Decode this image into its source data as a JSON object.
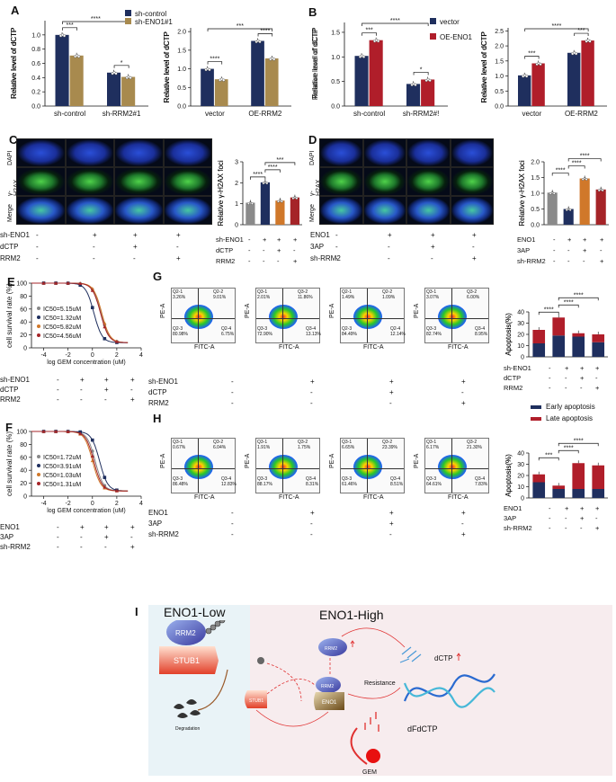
{
  "panels": {
    "A": "A",
    "B": "B",
    "C": "C",
    "D": "D",
    "E": "E",
    "F": "F",
    "G": "G",
    "H": "H",
    "I": "I"
  },
  "panelA": {
    "legend": [
      "sh-control",
      "sh-ENO1#1"
    ],
    "ylabel": "Relative level of dCTP",
    "chart1": {
      "categories": [
        "sh-control",
        "sh-RRM2#1"
      ],
      "sig": [
        "****",
        "***",
        "*"
      ]
    },
    "chart2": {
      "categories": [
        "vector",
        "OE-RRM2"
      ],
      "sig": [
        "***",
        "****",
        "****"
      ]
    }
  },
  "panelB": {
    "legend": [
      "vector",
      "OE-ENO1"
    ],
    "ylabel": "Relative level of dCTP",
    "chart1": {
      "categories": [
        "sh-control",
        "sh-RRM2#!"
      ],
      "sig": [
        "****",
        "***",
        "*"
      ]
    },
    "chart2": {
      "categories": [
        "vector",
        "OE-RRM2"
      ],
      "sig": [
        "****",
        "***",
        "***"
      ]
    }
  },
  "panelC": {
    "rows": [
      "DAPI",
      "γ-H2AX",
      "Merge"
    ],
    "ylabel": "Relative γ-H2AX foci",
    "sig": [
      "****",
      "****",
      "***"
    ],
    "conds": [
      {
        "name": "sh-ENO1",
        "vals": [
          "-",
          "+",
          "+",
          "+"
        ]
      },
      {
        "name": "dCTP",
        "vals": [
          "-",
          "-",
          "+",
          "-"
        ]
      },
      {
        "name": "RRM2",
        "vals": [
          "-",
          "-",
          "-",
          "+"
        ]
      }
    ]
  },
  "panelD": {
    "rows": [
      "DAPI",
      "γ-H2AX",
      "Merge"
    ],
    "ylabel": "Relative γ-H2AX foci",
    "sig": [
      "****",
      "****",
      "****"
    ],
    "conds": [
      {
        "name": "ENO1",
        "vals": [
          "-",
          "+",
          "+",
          "+"
        ]
      },
      {
        "name": "3AP",
        "vals": [
          "-",
          "-",
          "+",
          "-"
        ]
      },
      {
        "name": "sh-RRM2",
        "vals": [
          "-",
          "-",
          "-",
          "+"
        ]
      }
    ]
  },
  "panelE": {
    "ylabel": "cell survival rate (%)",
    "xlabel": "log GEM concentration (uM)",
    "ic50": [
      "IC50=5.15uM",
      "IC50=1.32uM",
      "IC50=5.82uM",
      "IC50=4.56uM"
    ],
    "conds": [
      {
        "name": "sh-ENO1",
        "vals": [
          "-",
          "+",
          "+",
          "+"
        ]
      },
      {
        "name": "dCTP",
        "vals": [
          "-",
          "-",
          "+",
          "-"
        ]
      },
      {
        "name": "RRM2",
        "vals": [
          "-",
          "-",
          "-",
          "+"
        ]
      }
    ]
  },
  "panelF": {
    "ylabel": "cell survival rate (%)",
    "xlabel": "log GEM concentration (uM)",
    "ic50": [
      "IC50=1.72uM",
      "IC50=3.91uM",
      "IC50=1.03uM",
      "IC50=1.31uM"
    ],
    "conds": [
      {
        "name": "ENO1",
        "vals": [
          "-",
          "+",
          "+",
          "+"
        ]
      },
      {
        "name": "3AP",
        "vals": [
          "-",
          "-",
          "+",
          "-"
        ]
      },
      {
        "name": "sh-RRM2",
        "vals": [
          "-",
          "-",
          "-",
          "+"
        ]
      }
    ]
  },
  "panelG": {
    "facs": [
      {
        "q1": "Q2-1",
        "q1v": "3.26%",
        "q2": "Q2-2",
        "q2v": "9.01%",
        "q3": "Q2-3",
        "q3v": "80.98%",
        "q4": "Q2-4",
        "q4v": "6.75%"
      },
      {
        "q1": "Q3-1",
        "q1v": "2.01%",
        "q2": "Q3-2",
        "q2v": "11.86%",
        "q3": "Q3-3",
        "q3v": "72.90%",
        "q4": "Q3-4",
        "q4v": "13.13%"
      },
      {
        "q1": "Q2-1",
        "q1v": "1.49%",
        "q2": "Q2-2",
        "q2v": "1.09%",
        "q3": "Q2-3",
        "q3v": "84.49%",
        "q4": "Q2-4",
        "q4v": "12.14%"
      },
      {
        "q1": "Q3-1",
        "q1v": "3.07%",
        "q2": "Q3-2",
        "q2v": "6.00%",
        "q3": "Q3-3",
        "q3v": "82.74%",
        "q4": "Q3-4",
        "q4v": "8.95%"
      }
    ],
    "ylabel": "Apoptosis(%)",
    "sig": [
      "****",
      "****",
      "****"
    ],
    "conds": [
      {
        "name": "sh-ENO1",
        "vals": [
          "-",
          "+",
          "+",
          "+"
        ]
      },
      {
        "name": "dCTP",
        "vals": [
          "-",
          "-",
          "+",
          "-"
        ]
      },
      {
        "name": "RRM2",
        "vals": [
          "-",
          "-",
          "-",
          "+"
        ]
      }
    ],
    "legend": [
      "Early apoptosis",
      "Late apoptosis"
    ]
  },
  "panelH": {
    "facs": [
      {
        "q1": "Q3-1",
        "q1v": "0.67%",
        "q2": "Q3-2",
        "q2v": "6.04%",
        "q3": "Q3-3",
        "q3v": "86.48%",
        "q4": "Q3-4",
        "q4v": "12.83%"
      },
      {
        "q1": "Q3-1",
        "q1v": "1.91%",
        "q2": "Q3-2",
        "q2v": "1.75%",
        "q3": "Q3-3",
        "q3v": "88.17%",
        "q4": "Q3-4",
        "q4v": "8.31%"
      },
      {
        "q1": "Q3-1",
        "q1v": "6.65%",
        "q2": "Q3-2",
        "q2v": "23.39%",
        "q3": "Q3-3",
        "q3v": "61.46%",
        "q4": "Q3-4",
        "q4v": "8.51%"
      },
      {
        "q1": "Q3-1",
        "q1v": "6.17%",
        "q2": "Q3-2",
        "q2v": "21.30%",
        "q3": "Q3-3",
        "q3v": "64.61%",
        "q4": "Q3-4",
        "q4v": "7.83%"
      }
    ],
    "ylabel": "Apoptosis(%)",
    "sig": [
      "***",
      "****",
      "****"
    ],
    "conds": [
      {
        "name": "ENO1",
        "vals": [
          "-",
          "+",
          "+",
          "+"
        ]
      },
      {
        "name": "3AP",
        "vals": [
          "-",
          "-",
          "+",
          "-"
        ]
      },
      {
        "name": "sh-RRM2",
        "vals": [
          "-",
          "-",
          "-",
          "+"
        ]
      }
    ]
  },
  "facs_axes": {
    "y": "PE-A",
    "x": "FITC-A"
  },
  "panelI": {
    "low_title": "ENO1-Low",
    "high_title": "ENO1-High",
    "rrm2": "RRM2",
    "stub1": "STUB1",
    "eno1": "ENO1",
    "degradation": "Degradation",
    "dctp": "dCTP",
    "resistance": "Resistance",
    "dfdctp": "dFdCTP",
    "gem": "GEM"
  },
  "chart_data": [
    {
      "type": "bar",
      "panel": "A-left",
      "categories": [
        "sh-control",
        "sh-RRM2#1"
      ],
      "series": [
        {
          "name": "sh-control",
          "values": [
            1.0,
            0.47
          ]
        },
        {
          "name": "sh-ENO1#1",
          "values": [
            0.71,
            0.41
          ]
        }
      ],
      "ylabel": "Relative level of dCTP",
      "ylim": [
        0,
        1.2
      ],
      "yticks": [
        0.0,
        0.2,
        0.4,
        0.6,
        0.8,
        1.0
      ]
    },
    {
      "type": "bar",
      "panel": "A-right",
      "categories": [
        "vector",
        "OE-RRM2"
      ],
      "series": [
        {
          "name": "sh-control",
          "values": [
            1.0,
            1.75
          ]
        },
        {
          "name": "sh-ENO1#1",
          "values": [
            0.72,
            1.28
          ]
        }
      ],
      "ylabel": "Relative level of dCTP",
      "ylim": [
        0,
        2.1
      ],
      "yticks": [
        0.0,
        0.5,
        1.0,
        1.5,
        2.0
      ]
    },
    {
      "type": "bar",
      "panel": "B-left",
      "categories": [
        "sh-control",
        "sh-RRM2#!"
      ],
      "series": [
        {
          "name": "vector",
          "values": [
            1.02,
            0.45
          ]
        },
        {
          "name": "OE-ENO1",
          "values": [
            1.34,
            0.54
          ]
        }
      ],
      "ylabel": "Relative level of dCTP",
      "ylim": [
        0,
        1.7
      ],
      "yticks": [
        0.0,
        0.5,
        1.0,
        1.5
      ]
    },
    {
      "type": "bar",
      "panel": "B-right",
      "categories": [
        "vector",
        "OE-RRM2"
      ],
      "series": [
        {
          "name": "vector",
          "values": [
            1.02,
            1.77
          ]
        },
        {
          "name": "OE-ENO1",
          "values": [
            1.42,
            2.18
          ]
        }
      ],
      "ylabel": "Relative level of dCTP",
      "ylim": [
        0,
        2.6
      ],
      "yticks": [
        0.0,
        0.5,
        1.0,
        1.5,
        2.0,
        2.5
      ]
    },
    {
      "type": "bar",
      "panel": "C",
      "categories": [
        "1",
        "2",
        "3",
        "4"
      ],
      "values": [
        1.05,
        2.02,
        1.15,
        1.3
      ],
      "ylabel": "Relative γ-H2AX foci",
      "ylim": [
        0,
        3
      ],
      "yticks": [
        0,
        1,
        2,
        3
      ],
      "colors": [
        "#8a8a8a",
        "#1f2f5e",
        "#d0782a",
        "#a52428"
      ]
    },
    {
      "type": "bar",
      "panel": "D",
      "categories": [
        "1",
        "2",
        "3",
        "4"
      ],
      "values": [
        1.02,
        0.5,
        1.47,
        1.12
      ],
      "ylabel": "Relative γ-H2AX foci",
      "ylim": [
        0,
        2.0
      ],
      "yticks": [
        0.0,
        0.5,
        1.0,
        1.5,
        2.0
      ],
      "colors": [
        "#8a8a8a",
        "#1f2f5e",
        "#d0782a",
        "#a52428"
      ]
    },
    {
      "type": "line",
      "panel": "E",
      "xlabel": "log GEM concentration (uM)",
      "ylabel": "cell survival rate (%)",
      "xlim": [
        -5,
        4
      ],
      "ylim": [
        0,
        100
      ],
      "xticks": [
        -4,
        -2,
        0,
        2,
        4
      ],
      "yticks": [
        0,
        20,
        40,
        60,
        80,
        100
      ],
      "series": [
        {
          "name": "IC50=5.15uM",
          "ic50": 5.15
        },
        {
          "name": "IC50=1.32uM",
          "ic50": 1.32
        },
        {
          "name": "IC50=5.82uM",
          "ic50": 5.82
        },
        {
          "name": "IC50=4.56uM",
          "ic50": 4.56
        }
      ]
    },
    {
      "type": "line",
      "panel": "F",
      "xlabel": "log GEM concentration (uM)",
      "ylabel": "cell survival rate (%)",
      "xlim": [
        -5,
        4
      ],
      "ylim": [
        0,
        100
      ],
      "xticks": [
        -4,
        -2,
        0,
        2,
        4
      ],
      "yticks": [
        0,
        20,
        40,
        60,
        80,
        100
      ],
      "series": [
        {
          "name": "IC50=1.72uM",
          "ic50": 1.72
        },
        {
          "name": "IC50=3.91uM",
          "ic50": 3.91
        },
        {
          "name": "IC50=1.03uM",
          "ic50": 1.03
        },
        {
          "name": "IC50=1.31uM",
          "ic50": 1.31
        }
      ]
    },
    {
      "type": "bar",
      "panel": "G-apoptosis",
      "categories": [
        "1",
        "2",
        "3",
        "4"
      ],
      "series": [
        {
          "name": "Early apoptosis",
          "values": [
            12,
            19,
            18,
            13
          ]
        },
        {
          "name": "Late apoptosis",
          "values": [
            12,
            16,
            3,
            7
          ]
        }
      ],
      "ylabel": "Apoptosis(%)",
      "ylim": [
        0,
        40
      ],
      "yticks": [
        0,
        10,
        20,
        30,
        40
      ]
    },
    {
      "type": "bar",
      "panel": "H-apoptosis",
      "categories": [
        "1",
        "2",
        "3",
        "4"
      ],
      "series": [
        {
          "name": "Early apoptosis",
          "values": [
            14,
            8,
            8,
            8
          ]
        },
        {
          "name": "Late apoptosis",
          "values": [
            7,
            3,
            23,
            21
          ]
        }
      ],
      "ylabel": "Apoptosis(%)",
      "ylim": [
        0,
        40
      ],
      "yticks": [
        0,
        10,
        20,
        30,
        40
      ]
    }
  ],
  "colors": {
    "navy": "#1f2f5e",
    "olive": "#a88a4e",
    "red": "#b01e2a",
    "gray": "#8a8a8a",
    "orange": "#d0782a",
    "darkred": "#a52428"
  }
}
